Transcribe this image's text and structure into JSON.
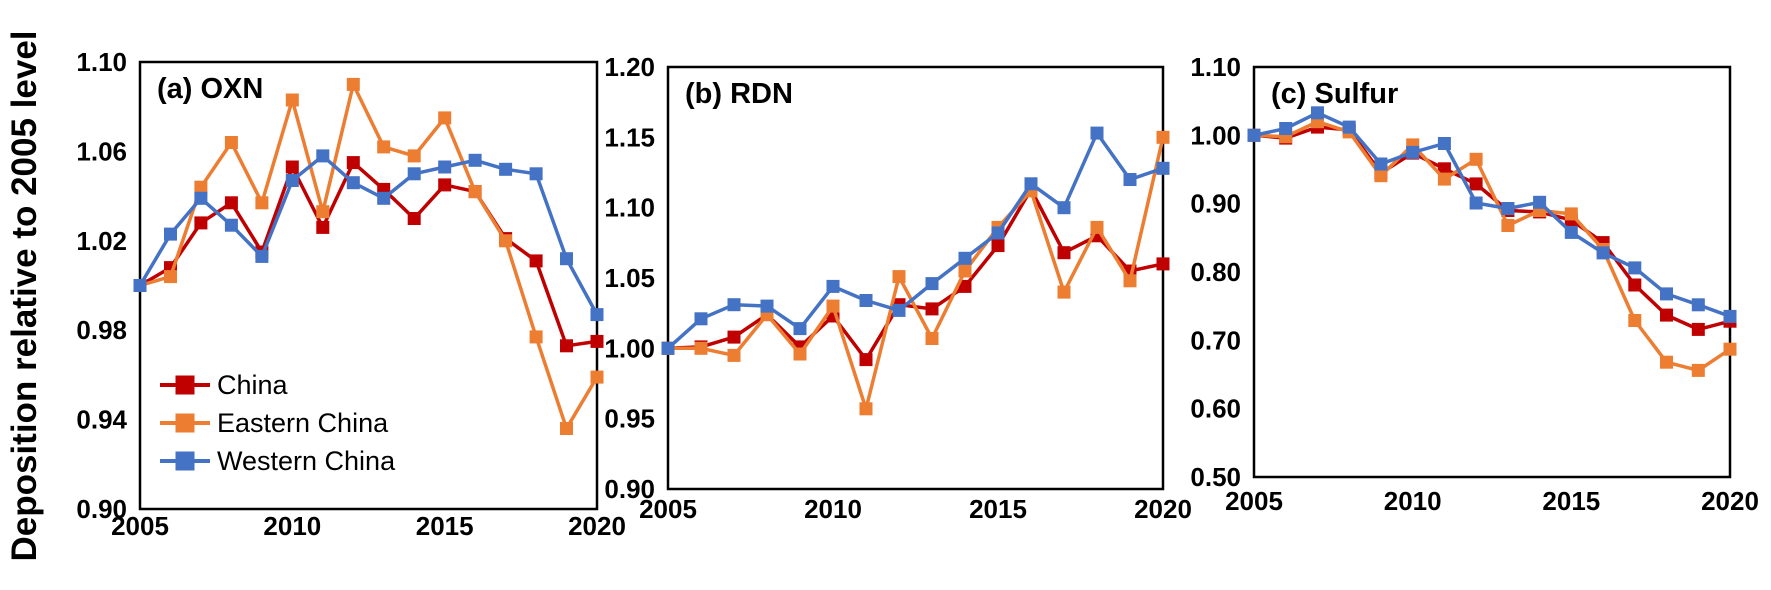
{
  "figure": {
    "y_axis_title": "Deposition relative to 2005 level",
    "x_tick_labels": [
      "2005",
      "2010",
      "2015",
      "2020"
    ],
    "legend": {
      "position": "inside panel (a), lower left",
      "entries": [
        {
          "label": "China",
          "color": "#C00000"
        },
        {
          "label": "Eastern China",
          "color": "#ED7D31"
        },
        {
          "label": "Western China",
          "color": "#4472C4"
        }
      ]
    }
  },
  "chart_data": [
    {
      "type": "line",
      "title": "(a) OXN",
      "ylabel": "Deposition relative to 2005 level",
      "x": [
        2005,
        2006,
        2007,
        2008,
        2009,
        2010,
        2011,
        2012,
        2013,
        2014,
        2015,
        2016,
        2017,
        2018,
        2019,
        2020
      ],
      "xticks": [
        2005,
        2010,
        2015,
        2020
      ],
      "ylim": [
        0.9,
        1.1
      ],
      "ytick_labels": [
        "1.10",
        "1.06",
        "1.02",
        "0.98",
        "0.94",
        "0.90"
      ],
      "grid": false,
      "legend_shown": true,
      "series": [
        {
          "name": "China",
          "color": "#C00000",
          "values": [
            1.0,
            1.008,
            1.028,
            1.037,
            1.015,
            1.053,
            1.026,
            1.055,
            1.043,
            1.03,
            1.045,
            1.042,
            1.021,
            1.011,
            0.973,
            0.975
          ]
        },
        {
          "name": "Eastern China",
          "color": "#ED7D31",
          "values": [
            1.0,
            1.004,
            1.044,
            1.064,
            1.037,
            1.083,
            1.033,
            1.09,
            1.062,
            1.058,
            1.075,
            1.042,
            1.02,
            0.977,
            0.936,
            0.959
          ]
        },
        {
          "name": "Western China",
          "color": "#4472C4",
          "values": [
            1.0,
            1.023,
            1.039,
            1.027,
            1.013,
            1.047,
            1.058,
            1.046,
            1.039,
            1.05,
            1.053,
            1.056,
            1.052,
            1.05,
            1.012,
            0.987
          ]
        }
      ]
    },
    {
      "type": "line",
      "title": "(b) RDN",
      "ylabel": "Deposition relative to 2005 level",
      "x": [
        2005,
        2006,
        2007,
        2008,
        2009,
        2010,
        2011,
        2012,
        2013,
        2014,
        2015,
        2016,
        2017,
        2018,
        2019,
        2020
      ],
      "xticks": [
        2005,
        2010,
        2015,
        2020
      ],
      "ylim": [
        0.9,
        1.2
      ],
      "ytick_labels": [
        "1.20",
        "1.15",
        "1.10",
        "1.05",
        "1.00",
        "0.95",
        "0.90"
      ],
      "grid": false,
      "legend_shown": false,
      "series": [
        {
          "name": "China",
          "color": "#C00000",
          "values": [
            1.0,
            1.001,
            1.008,
            1.024,
            1.001,
            1.023,
            0.992,
            1.031,
            1.028,
            1.044,
            1.073,
            1.113,
            1.068,
            1.08,
            1.055,
            1.06
          ]
        },
        {
          "name": "Eastern China",
          "color": "#ED7D31",
          "values": [
            1.0,
            1.0,
            0.995,
            1.024,
            0.996,
            1.03,
            0.957,
            1.051,
            1.007,
            1.055,
            1.086,
            1.112,
            1.04,
            1.086,
            1.048,
            1.15
          ]
        },
        {
          "name": "Western China",
          "color": "#4472C4",
          "values": [
            1.0,
            1.021,
            1.031,
            1.03,
            1.014,
            1.044,
            1.034,
            1.027,
            1.046,
            1.064,
            1.082,
            1.117,
            1.1,
            1.153,
            1.12,
            1.128
          ]
        }
      ]
    },
    {
      "type": "line",
      "title": "(c) Sulfur",
      "ylabel": "Deposition relative to 2005 level",
      "x": [
        2005,
        2006,
        2007,
        2008,
        2009,
        2010,
        2011,
        2012,
        2013,
        2014,
        2015,
        2016,
        2017,
        2018,
        2019,
        2020
      ],
      "xticks": [
        2005,
        2010,
        2015,
        2020
      ],
      "ylim": [
        0.5,
        1.1
      ],
      "ytick_labels": [
        "1.10",
        "1.00",
        "0.90",
        "0.80",
        "0.70",
        "0.60",
        "0.50"
      ],
      "grid": false,
      "legend_shown": false,
      "series": [
        {
          "name": "China",
          "color": "#C00000",
          "values": [
            1.0,
            0.996,
            1.012,
            1.008,
            0.945,
            0.974,
            0.951,
            0.929,
            0.89,
            0.888,
            0.876,
            0.843,
            0.781,
            0.737,
            0.716,
            0.728
          ]
        },
        {
          "name": "Eastern China",
          "color": "#ED7D31",
          "values": [
            1.0,
            0.998,
            1.02,
            1.005,
            0.941,
            0.986,
            0.936,
            0.965,
            0.868,
            0.89,
            0.885,
            0.833,
            0.729,
            0.668,
            0.656,
            0.687
          ]
        },
        {
          "name": "Western China",
          "color": "#4472C4",
          "values": [
            1.0,
            1.01,
            1.033,
            1.012,
            0.958,
            0.975,
            0.988,
            0.901,
            0.893,
            0.902,
            0.858,
            0.828,
            0.806,
            0.768,
            0.752,
            0.735
          ]
        }
      ]
    }
  ]
}
